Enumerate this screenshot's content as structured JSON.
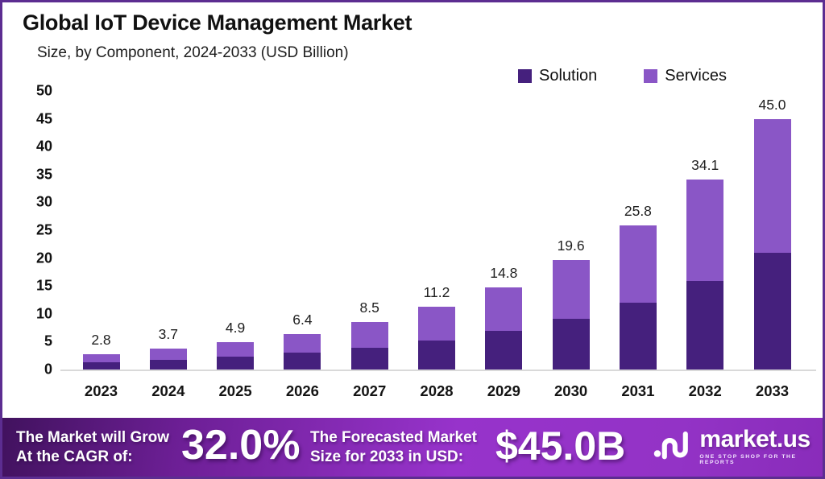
{
  "header": {
    "title": "Global IoT Device Management Market",
    "subtitle": "Size, by Component, 2024-2033 (USD Billion)"
  },
  "legend": [
    {
      "label": "Solution",
      "color": "#45207D"
    },
    {
      "label": "Services",
      "color": "#8A56C6"
    }
  ],
  "chart_data": {
    "type": "bar",
    "stacked": true,
    "title": "Global IoT Device Management Market",
    "subtitle": "Size, by Component, 2024-2033 (USD Billion)",
    "categories": [
      "2023",
      "2024",
      "2025",
      "2026",
      "2027",
      "2028",
      "2029",
      "2030",
      "2031",
      "2032",
      "2033"
    ],
    "series": [
      {
        "name": "Solution",
        "color": "#45207D",
        "values": [
          1.3,
          1.7,
          2.3,
          3.0,
          3.9,
          5.2,
          6.9,
          9.1,
          12.0,
          15.9,
          21.0
        ]
      },
      {
        "name": "Services",
        "color": "#8A56C6",
        "values": [
          1.5,
          2.0,
          2.6,
          3.4,
          4.6,
          6.0,
          7.9,
          10.5,
          13.8,
          18.2,
          24.0
        ]
      }
    ],
    "totals": [
      2.8,
      3.7,
      4.9,
      6.4,
      8.5,
      11.2,
      14.8,
      19.6,
      25.8,
      34.1,
      45.0
    ],
    "total_label_format": "1-decimal",
    "xlabel": "",
    "ylabel": "",
    "ylim": [
      0,
      50
    ],
    "yticks": [
      0,
      5,
      10,
      15,
      20,
      25,
      30,
      35,
      40,
      45,
      50
    ],
    "grid": false,
    "legend_position": "top-right"
  },
  "banner": {
    "cagr_label_line1": "The Market will Grow",
    "cagr_label_line2": "At the CAGR of:",
    "cagr_value": "32.0%",
    "forecast_label_line1": "The Forecasted Market",
    "forecast_label_line2": "Size for 2033 in USD:",
    "forecast_value": "$45.0B",
    "logo_text": "market.us",
    "logo_tagline": "ONE STOP SHOP FOR THE REPORTS"
  },
  "colors": {
    "border": "#5C2D91",
    "solution": "#45207D",
    "services": "#8A56C6",
    "baseline": "#D9D9D9",
    "banner_gradient_start": "#41125E",
    "banner_gradient_mid": "#9733CB",
    "banner_gradient_end": "#892CBA"
  }
}
